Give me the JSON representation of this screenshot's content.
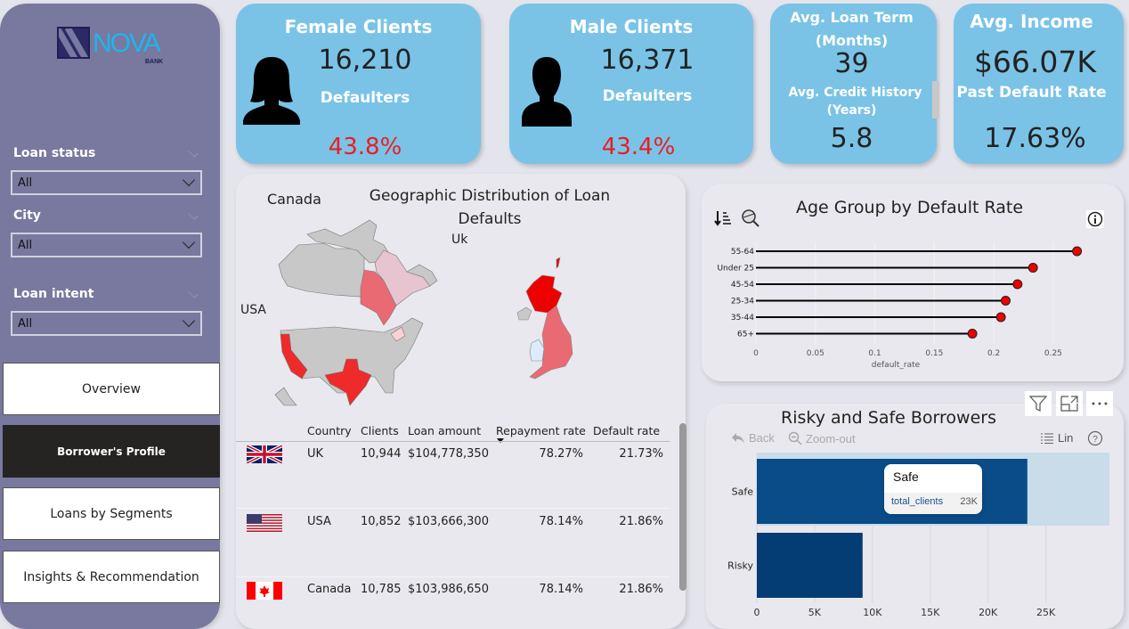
{
  "brand": {
    "logo_text": "NOVA",
    "logo_sub": "BANK"
  },
  "filters": [
    {
      "label": "Loan status",
      "value": "All"
    },
    {
      "label": "City",
      "value": "All"
    },
    {
      "label": "Loan intent",
      "value": "All"
    }
  ],
  "nav": [
    {
      "label": "Overview",
      "active": false
    },
    {
      "label": "Borrower's Profile",
      "active": true
    },
    {
      "label": "Loans by Segments",
      "active": false
    },
    {
      "label": "Insights & Recommendation",
      "active": false
    }
  ],
  "kpi": {
    "female": {
      "title": "Female Clients",
      "count": "16,210",
      "sub": "Defaulters",
      "rate": "43.8%"
    },
    "male": {
      "title": "Male Clients",
      "count": "16,371",
      "sub": "Defaulters",
      "rate": "43.4%"
    },
    "term": {
      "title1": "Avg. Loan Term",
      "title2": "(Months)",
      "value": "39",
      "title3": "Avg. Credit History",
      "title4": "(Years)",
      "value2": "5.8"
    },
    "income": {
      "title": "Avg. Income",
      "value": "$66.07K",
      "sub": "Past Default Rate",
      "value2": "17.63%"
    }
  },
  "map": {
    "title": "Geographic Distribution of Loan Defaults",
    "labels": {
      "canada": "Canada",
      "uk": "Uk",
      "usa": "USA"
    },
    "colors": {
      "high": "#ee1c24",
      "mid": "#e96a73",
      "low": "#e8c3d0",
      "pale": "#fbd0d4",
      "none": "#c8c8c8",
      "wales": "#dcecfb"
    }
  },
  "table": {
    "headers": [
      "Country",
      "Clients",
      "Loan amount",
      "Repayment rate",
      "Default rate"
    ],
    "rows": [
      {
        "flag": "uk-flag",
        "country": "UK",
        "clients": "10,944",
        "loan": "$104,778,350",
        "repay": "78.27%",
        "default": "21.73%"
      },
      {
        "flag": "usa-flag",
        "country": "USA",
        "clients": "10,852",
        "loan": "$103,666,300",
        "repay": "78.14%",
        "default": "21.86%"
      },
      {
        "flag": "canada-flag",
        "country": "Canada",
        "clients": "10,785",
        "loan": "$103,986,650",
        "repay": "78.14%",
        "default": "21.86%"
      }
    ]
  },
  "chart_data": [
    {
      "type": "lollipop",
      "title": "Age Group by Default Rate",
      "xlabel": "default_rate",
      "categories": [
        "55-64",
        "Under 25",
        "45-54",
        "25-34",
        "35-44",
        "65+"
      ],
      "values": [
        0.27,
        0.233,
        0.22,
        0.21,
        0.206,
        0.182
      ],
      "xlim": [
        0,
        0.295
      ],
      "xticks": [
        0,
        0.05,
        0.1,
        0.15,
        0.2,
        0.25
      ],
      "xtick_labels": [
        "0",
        "0.05",
        "0.1",
        "0.15",
        "0.2",
        "0.25"
      ],
      "marker_color": "#ee0000"
    },
    {
      "type": "bar",
      "orientation": "horizontal",
      "title": "Risky and Safe Borrowers",
      "categories": [
        "Safe",
        "Risky"
      ],
      "values": [
        23400,
        9150
      ],
      "xlim": [
        0,
        30500
      ],
      "xticks": [
        0,
        5000,
        10000,
        15000,
        20000,
        25000
      ],
      "xtick_labels": [
        "0",
        "5K",
        "10K",
        "15K",
        "20K",
        "25K"
      ],
      "bar_colors": [
        "#094c88",
        "#033d74"
      ],
      "highlight_color": "#c8dce9",
      "toolbar": {
        "back": "Back",
        "zoom_out": "Zoom-out",
        "scale": "Lin"
      },
      "tooltip": {
        "title": "Safe",
        "field": "total_clients",
        "value": "23K"
      }
    }
  ]
}
